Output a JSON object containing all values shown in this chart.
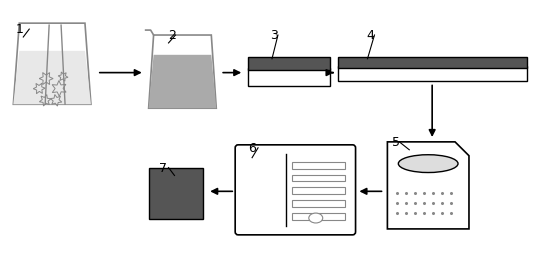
{
  "bg_color": "#ffffff",
  "label_color": "#000000",
  "dark_color": "#555555",
  "mid_gray": "#aaaaaa",
  "light_gray": "#e8e8e8",
  "outline_color": "#888888"
}
